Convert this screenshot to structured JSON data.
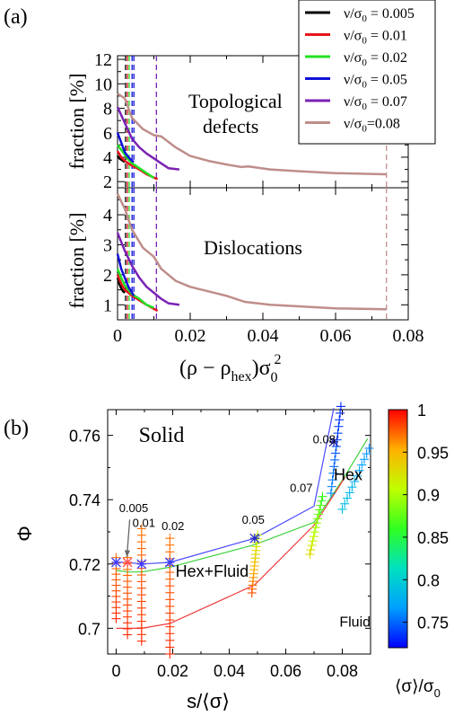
{
  "chart_data": [
    {
      "panel_label": "(a)",
      "type": "line",
      "xlim": [
        0,
        0.08
      ],
      "x_ticks": [
        0,
        0.02,
        0.04,
        0.06,
        0.08
      ],
      "x_tick_labels": [
        "0",
        "0.02",
        "0.04",
        "0.06",
        "0.08"
      ],
      "xlabel_main": "(ρ − ρ",
      "xlabel_sub": "hex",
      "xlabel_end": ")σ",
      "xlabel_sub2": "0",
      "xlabel_sup": "2",
      "legend_position": "top-right",
      "legend": [
        {
          "name": "ν/σ₀ = 0.005",
          "name_main": "ν/σ",
          "sub": "0",
          "rest": " = 0.005",
          "color": "#000000"
        },
        {
          "name": "ν/σ₀ = 0.01",
          "name_main": "ν/σ",
          "sub": "0",
          "rest": " = 0.01",
          "color": "#e8141c"
        },
        {
          "name": "ν/σ₀ = 0.02",
          "name_main": "ν/σ",
          "sub": "0",
          "rest": " = 0.02",
          "color": "#22e022"
        },
        {
          "name": "ν/σ₀ = 0.05",
          "name_main": "ν/σ",
          "sub": "0",
          "rest": " = 0.05",
          "color": "#1010d8"
        },
        {
          "name": "ν/σ₀ = 0.07",
          "name_main": "ν/σ",
          "sub": "0",
          "rest": " = 0.07",
          "color": "#7a22b4"
        },
        {
          "name": "ν/σ₀=0.08",
          "name_main": "ν/σ",
          "sub": "0",
          "rest": "=0.08",
          "color": "#be8e8a"
        }
      ],
      "vlines": [
        {
          "x": 0.0022,
          "color": "#000000"
        },
        {
          "x": 0.0027,
          "color": "#e8141c"
        },
        {
          "x": 0.0032,
          "color": "#22e022"
        },
        {
          "x": 0.004,
          "color": "#1010d8"
        },
        {
          "x": 0.0045,
          "color": "#1010d8"
        },
        {
          "x": 0.0107,
          "color": "#7a22b4"
        },
        {
          "x": 0.074,
          "color": "#be8e8a"
        }
      ],
      "subplots": [
        {
          "annotation_lines": [
            "Topological",
            "defects"
          ],
          "ylabel": "fraction [%]",
          "ylim": [
            1.5,
            12.3
          ],
          "y_ticks": [
            2,
            4,
            6,
            8,
            10,
            12
          ],
          "y_tick_labels": [
            "2",
            "4",
            "6",
            "8",
            "10",
            "12"
          ],
          "series": [
            {
              "color": "#000000",
              "x": [
                0,
                0.0005,
                0.001,
                0.0015,
                0.002
              ],
              "y": [
                4.1,
                3.9,
                3.8,
                3.7,
                3.6
              ]
            },
            {
              "color": "#e8141c",
              "x": [
                0,
                0.001,
                0.002,
                0.004,
                0.006,
                0.008,
                0.011
              ],
              "y": [
                4.5,
                4.0,
                3.7,
                3.3,
                3.0,
                2.6,
                2.2
              ]
            },
            {
              "color": "#22e022",
              "x": [
                0,
                0.001,
                0.002,
                0.003,
                0.004,
                0.006,
                0.008,
                0.01
              ],
              "y": [
                5.0,
                4.6,
                4.2,
                3.8,
                3.5,
                3.1,
                2.7,
                2.3
              ]
            },
            {
              "color": "#1010d8",
              "x": [
                0,
                0.001,
                0.002,
                0.003,
                0.004,
                0.0045
              ],
              "y": [
                6.0,
                5.2,
                4.4,
                4.0,
                3.7,
                3.6
              ]
            },
            {
              "color": "#7a22b4",
              "x": [
                0,
                0.002,
                0.004,
                0.006,
                0.008,
                0.01,
                0.012,
                0.014,
                0.017
              ],
              "y": [
                8.1,
                6.8,
                5.5,
                4.8,
                4.3,
                3.9,
                3.5,
                3.1,
                3.0
              ]
            },
            {
              "color": "#be8e8a",
              "x": [
                0,
                0.002,
                0.004,
                0.007,
                0.01,
                0.012,
                0.016,
                0.02,
                0.025,
                0.03,
                0.034,
                0.036,
                0.042,
                0.05,
                0.06,
                0.074
              ],
              "y": [
                9.2,
                8.8,
                7.2,
                6.3,
                5.8,
                5.7,
                4.8,
                4.1,
                3.7,
                3.4,
                3.2,
                3.25,
                3.0,
                2.85,
                2.7,
                2.6
              ]
            }
          ]
        },
        {
          "annotation_lines": [
            "Dislocations"
          ],
          "ylabel": "fraction [%]",
          "ylim": [
            0.5,
            4.9
          ],
          "y_ticks": [
            1,
            2,
            3,
            4
          ],
          "y_tick_labels": [
            "1",
            "2",
            "3",
            "4"
          ],
          "series": [
            {
              "color": "#000000",
              "x": [
                0,
                0.0005,
                0.001,
                0.0015,
                0.002
              ],
              "y": [
                1.9,
                1.7,
                1.55,
                1.45,
                1.4
              ]
            },
            {
              "color": "#e8141c",
              "x": [
                0,
                0.001,
                0.002,
                0.004,
                0.006,
                0.008,
                0.011
              ],
              "y": [
                2.0,
                1.7,
                1.5,
                1.3,
                1.15,
                1.0,
                0.8
              ]
            },
            {
              "color": "#22e022",
              "x": [
                0,
                0.001,
                0.002,
                0.003,
                0.004,
                0.006,
                0.008,
                0.01
              ],
              "y": [
                2.2,
                1.9,
                1.65,
                1.5,
                1.35,
                1.2,
                1.0,
                0.9
              ]
            },
            {
              "color": "#1010d8",
              "x": [
                0,
                0.001,
                0.002,
                0.003,
                0.004,
                0.0045
              ],
              "y": [
                2.7,
                2.2,
                1.9,
                1.6,
                1.4,
                1.3
              ]
            },
            {
              "color": "#7a22b4",
              "x": [
                0,
                0.002,
                0.004,
                0.006,
                0.008,
                0.01,
                0.012,
                0.014,
                0.017
              ],
              "y": [
                3.4,
                2.8,
                2.3,
                1.9,
                1.6,
                1.4,
                1.2,
                1.05,
                1.0
              ]
            },
            {
              "color": "#be8e8a",
              "x": [
                0,
                0.002,
                0.004,
                0.007,
                0.01,
                0.012,
                0.016,
                0.02,
                0.025,
                0.03,
                0.035,
                0.042,
                0.05,
                0.06,
                0.074
              ],
              "y": [
                4.7,
                4.2,
                3.5,
                2.9,
                2.6,
                2.2,
                1.8,
                1.6,
                1.45,
                1.3,
                1.1,
                1.0,
                0.95,
                0.88,
                0.85
              ]
            }
          ]
        }
      ]
    },
    {
      "panel_label": "(b)",
      "type": "scatter",
      "xlabel": "s/⟨σ⟩",
      "ylabel": "Φ",
      "xlim": [
        -0.003,
        0.09
      ],
      "ylim": [
        0.692,
        0.768
      ],
      "x_ticks": [
        0,
        0.02,
        0.04,
        0.06,
        0.08
      ],
      "x_tick_labels": [
        "0",
        "0.02",
        "0.04",
        "0.06",
        "0.08"
      ],
      "y_ticks": [
        0.7,
        0.72,
        0.74,
        0.76
      ],
      "y_tick_labels": [
        "0.7",
        "0.72",
        "0.74",
        "0.76"
      ],
      "region_labels": [
        {
          "text": "Solid",
          "x": 0.008,
          "y": 0.758
        },
        {
          "text": "Hex",
          "x": 0.077,
          "y": 0.746
        },
        {
          "text": "Hex+Fluid",
          "x": 0.021,
          "y": 0.716
        },
        {
          "text": "Fluid",
          "x": 0.079,
          "y": 0.7005
        }
      ],
      "point_labels": [
        {
          "text": "0.005",
          "x": 0.0062,
          "y": 0.7362
        },
        {
          "text": "0.01",
          "x": 0.0098,
          "y": 0.7315
        },
        {
          "text": "0.02",
          "x": 0.0201,
          "y": 0.7305
        },
        {
          "text": "0.05",
          "x": 0.0485,
          "y": 0.7325
        },
        {
          "text": "0.07",
          "x": 0.0655,
          "y": 0.7425
        },
        {
          "text": "0.08",
          "x": 0.0736,
          "y": 0.7575
        }
      ],
      "arrow": {
        "from": [
          0.0048,
          0.7338
        ],
        "to": [
          0.0038,
          0.7222
        ]
      },
      "boundary_lines": [
        {
          "color": "#4b4bff",
          "x": [
            0,
            0.004,
            0.009,
            0.019,
            0.049,
            0.07,
            0.077
          ],
          "y": [
            0.7205,
            0.7205,
            0.72,
            0.7205,
            0.728,
            0.738,
            0.7685
          ]
        },
        {
          "color": "#3cd23c",
          "x": [
            0,
            0.004,
            0.009,
            0.019,
            0.049,
            0.07,
            0.08,
            0.089
          ],
          "y": [
            0.718,
            0.7175,
            0.7175,
            0.719,
            0.726,
            0.733,
            0.746,
            0.759
          ]
        },
        {
          "color": "#ee3c3c",
          "x": [
            0,
            0.009,
            0.019,
            0.049,
            0.07,
            0.081
          ],
          "y": [
            0.7,
            0.7,
            0.7015,
            0.7135,
            0.732,
            0.747
          ]
        }
      ],
      "point_series": [
        {
          "x": 0.0,
          "y_min": 0.703,
          "y_max": 0.722,
          "c_min": 0.99,
          "c_max": 0.97,
          "n": 12
        },
        {
          "x": 0.004,
          "y_min": 0.698,
          "y_max": 0.722,
          "c_min": 0.99,
          "c_max": 0.97,
          "n": 14
        },
        {
          "x": 0.009,
          "y_min": 0.696,
          "y_max": 0.731,
          "c_min": 0.99,
          "c_max": 0.97,
          "n": 18
        },
        {
          "x": 0.019,
          "y_min": 0.692,
          "y_max": 0.728,
          "c_min": 0.99,
          "c_max": 0.97,
          "n": 18
        },
        {
          "x1": 0.048,
          "x2": 0.05,
          "y_min": 0.711,
          "y_max": 0.729,
          "c_min": 0.98,
          "c_max": 0.91,
          "n": 16
        },
        {
          "x1": 0.0685,
          "x2": 0.073,
          "y_min": 0.723,
          "y_max": 0.741,
          "c_min": 0.93,
          "c_max": 0.86,
          "n": 14
        },
        {
          "x1": 0.076,
          "x2": 0.0795,
          "y_min": 0.742,
          "y_max": 0.769,
          "c_min": 0.76,
          "c_max": 0.73,
          "n": 14
        },
        {
          "x1": 0.08,
          "x2": 0.0895,
          "y_min": 0.737,
          "y_max": 0.756,
          "c_min": 0.79,
          "c_max": 0.76,
          "n": 12
        }
      ],
      "boundary_markers": [
        {
          "x": 0.0,
          "y": 0.7205,
          "color": "#3a3aff"
        },
        {
          "x": 0.004,
          "y": 0.7205,
          "color": "#ff5050"
        },
        {
          "x": 0.009,
          "y": 0.72,
          "color": "#3a3aff"
        },
        {
          "x": 0.019,
          "y": 0.7205,
          "color": "#3a3aff"
        },
        {
          "x": 0.049,
          "y": 0.728,
          "color": "#2828c8"
        },
        {
          "x": 0.077,
          "y": 0.758,
          "color": "#2a2ab0"
        }
      ],
      "colorbar": {
        "label": "⟨σ⟩/σ₀",
        "label_main": "⟨σ⟩/σ",
        "label_sub": "0",
        "range": [
          0.72,
          1.0
        ],
        "ticks": [
          0.75,
          0.8,
          0.85,
          0.9,
          0.95,
          1
        ],
        "tick_labels": [
          "0.75",
          "0.8",
          "0.85",
          "0.9",
          "0.95",
          "1"
        ],
        "colors": [
          "#0000ff",
          "#00a0ff",
          "#00e0c0",
          "#30ff20",
          "#c0ff00",
          "#ffb000",
          "#ff0000"
        ]
      }
    }
  ]
}
